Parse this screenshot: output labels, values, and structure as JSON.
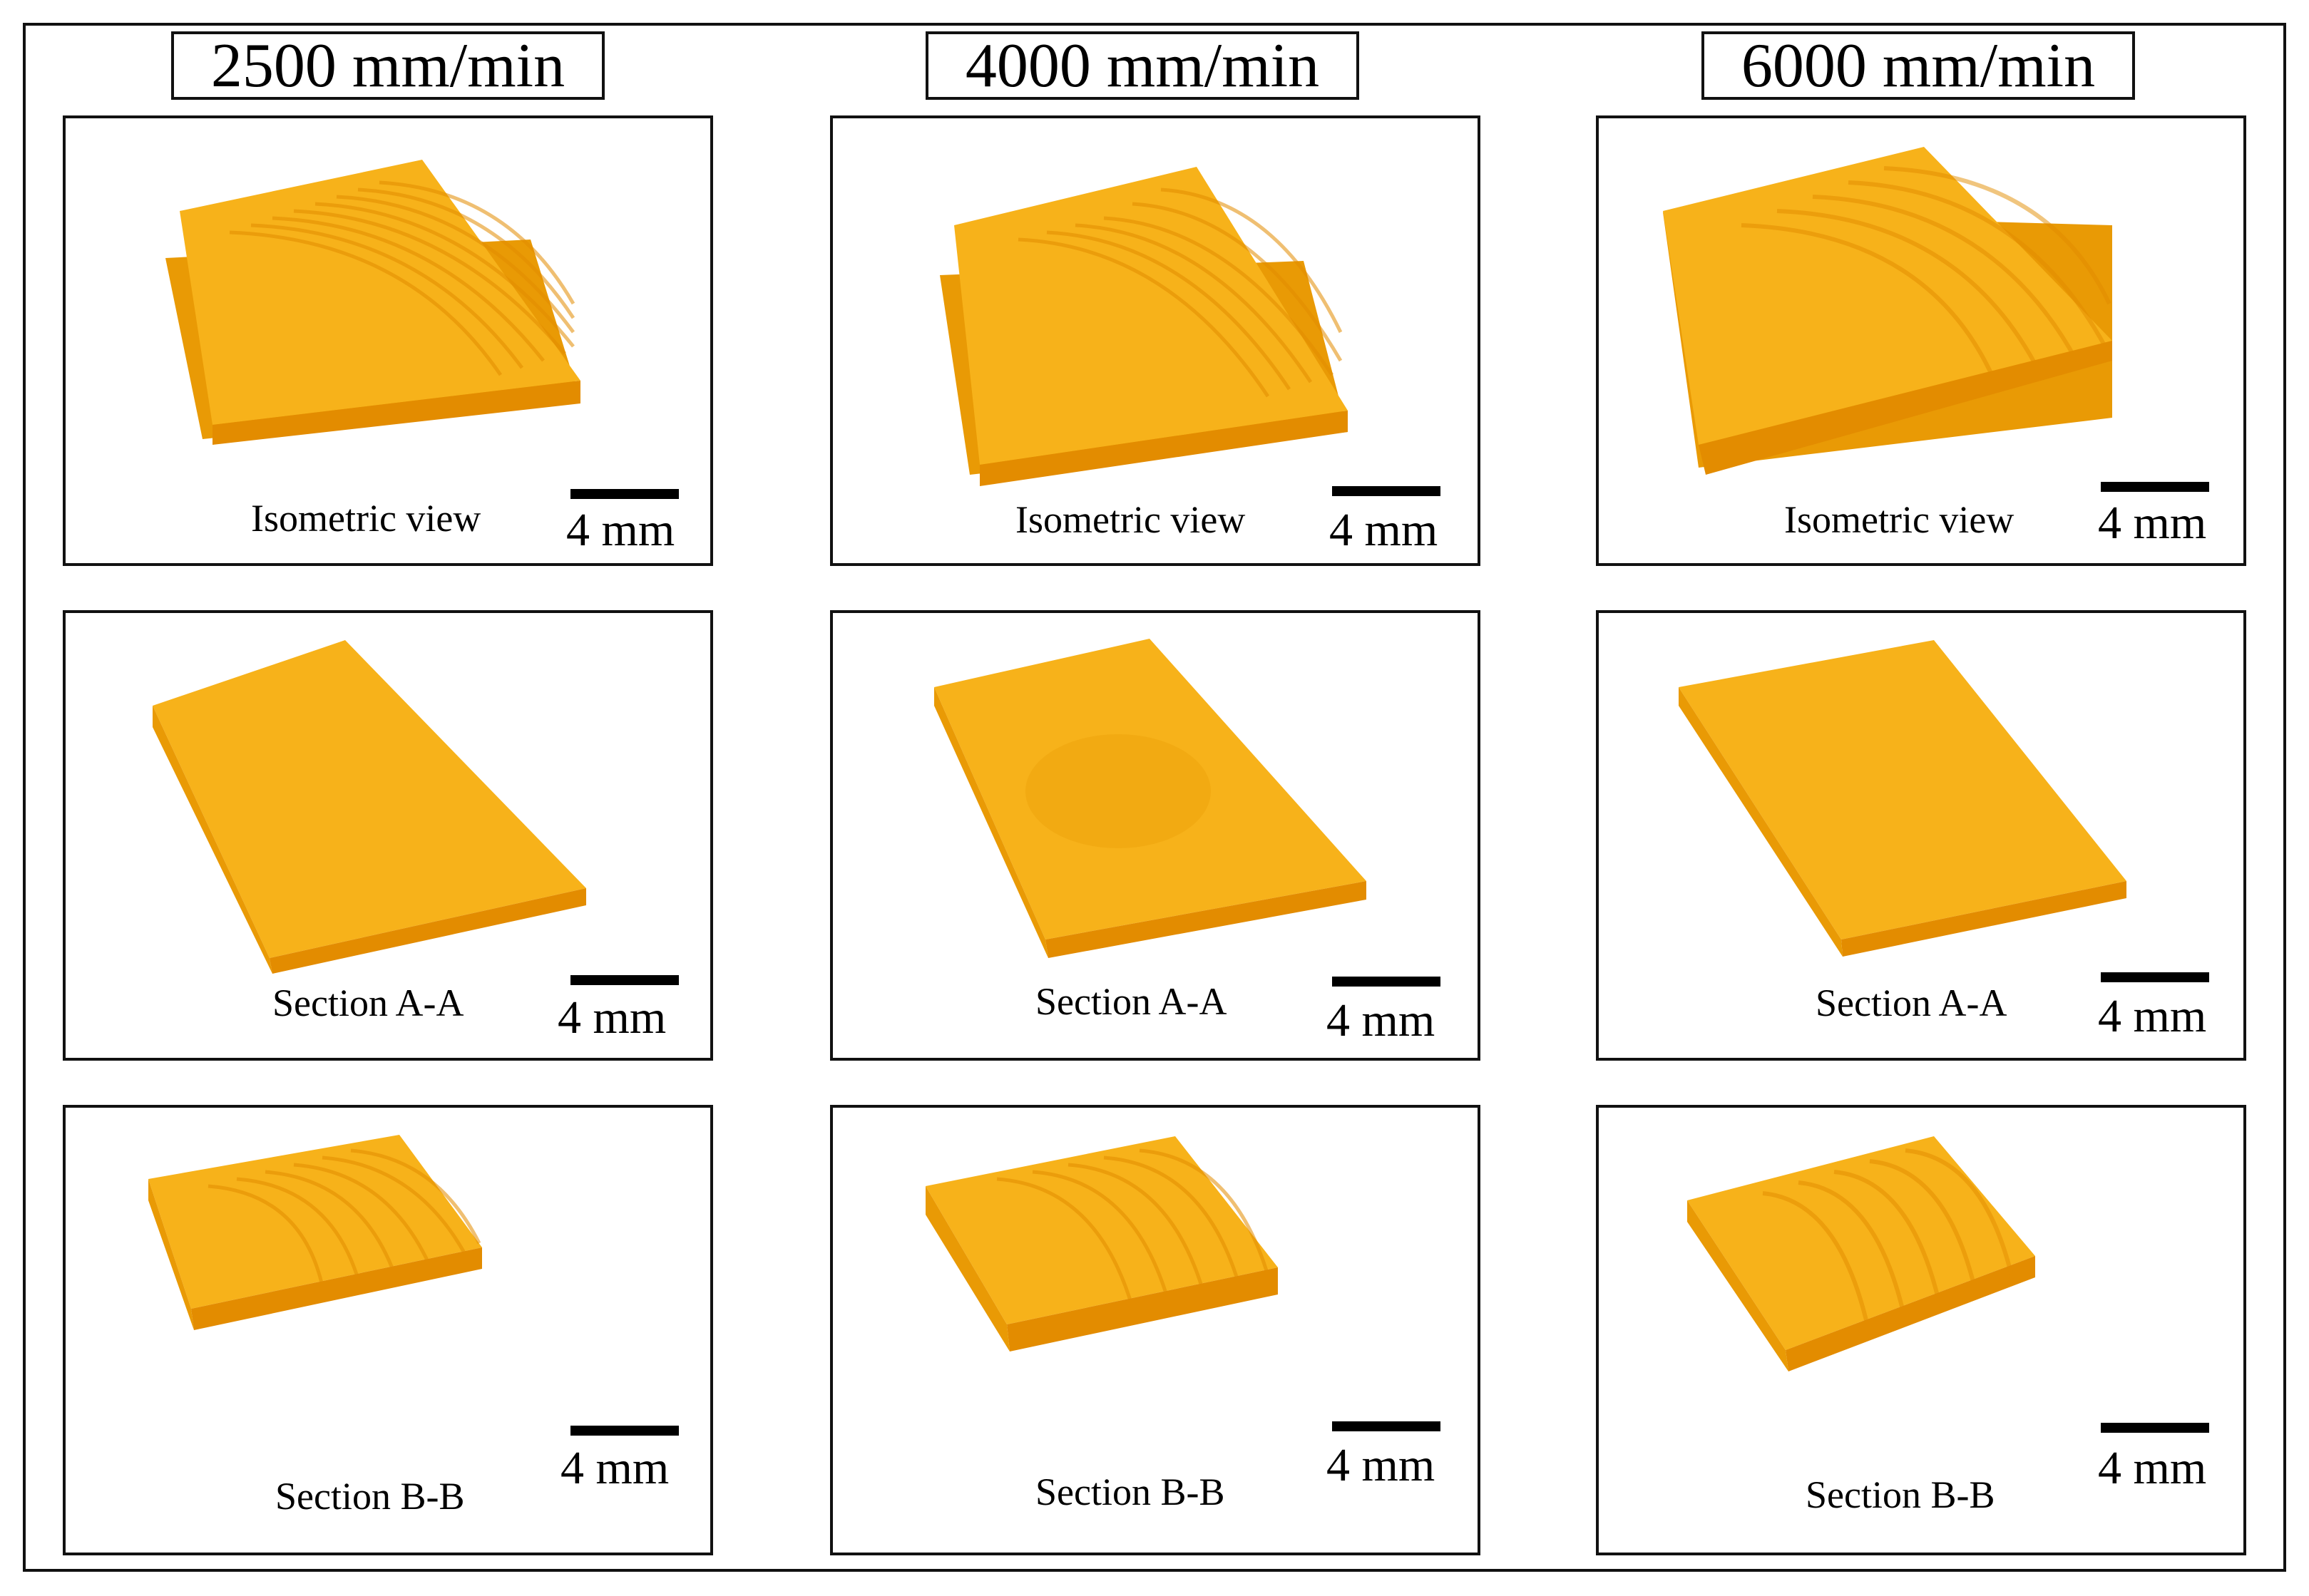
{
  "columns": [
    {
      "header": "2500 mm/min"
    },
    {
      "header": "4000 mm/min"
    },
    {
      "header": "6000 mm/min"
    }
  ],
  "rows": [
    {
      "caption": "Isometric view"
    },
    {
      "caption": "Section A-A"
    },
    {
      "caption": "Section B-B"
    }
  ],
  "scale_bar": {
    "label": "4 mm"
  },
  "colors": {
    "sample_top": "#f7b21a",
    "sample_side": "#e99a05",
    "sample_edge": "#ffc93d",
    "ridge": "#e38c00",
    "frame": "#111111"
  },
  "icons": [
    "printed-part-photo"
  ]
}
